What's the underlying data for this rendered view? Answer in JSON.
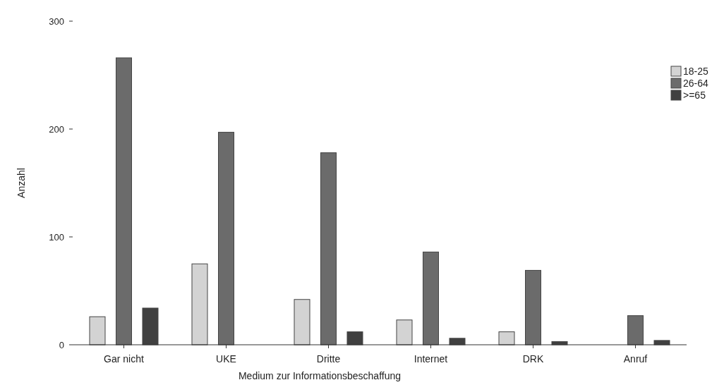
{
  "chart_data": {
    "type": "bar",
    "xlabel": "Medium zur Informationsbeschaffung",
    "ylabel": "Anzahl",
    "categories": [
      "Gar nicht",
      "UKE",
      "Dritte",
      "Internet",
      "DRK",
      "Anruf"
    ],
    "series": [
      {
        "name": "18-25",
        "color": "#d3d3d3",
        "values": [
          26,
          75,
          42,
          23,
          12,
          null
        ]
      },
      {
        "name": "26-64",
        "color": "#6b6b6b",
        "values": [
          266,
          197,
          178,
          86,
          69,
          27
        ]
      },
      {
        "name": ">=65",
        "color": "#404040",
        "values": [
          34,
          null,
          12,
          6,
          3,
          4
        ]
      }
    ],
    "ylim": [
      0,
      300
    ],
    "yticks": [
      0,
      100,
      200,
      300
    ],
    "grid": false,
    "legend": "top right"
  }
}
